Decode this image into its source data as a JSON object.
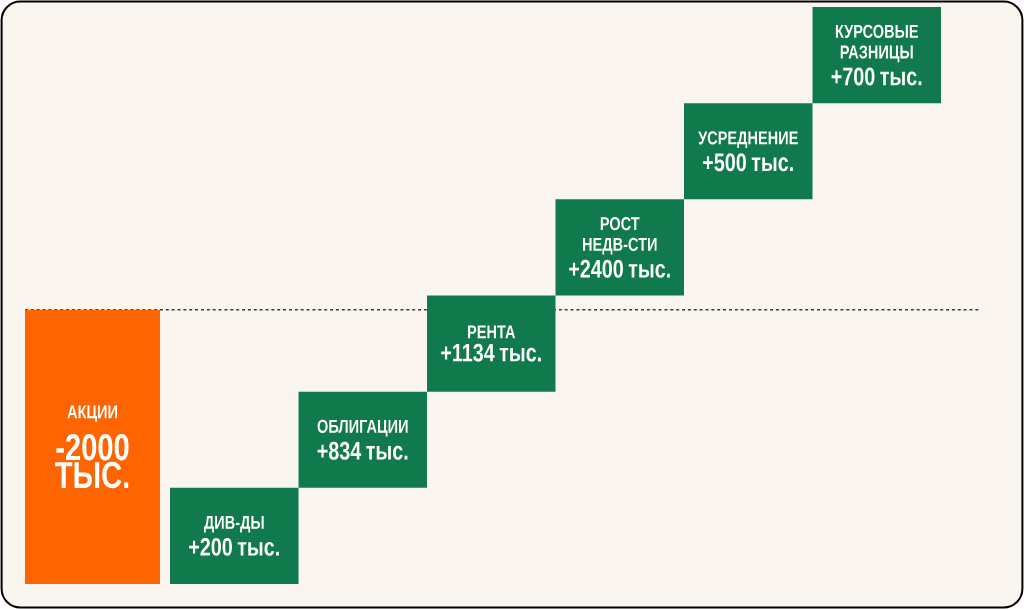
{
  "chart_data": {
    "type": "other",
    "categories": [
      "АКЦИИ",
      "ДИВ-ДЫ",
      "ОБЛИГАЦИИ",
      "РЕНТА",
      "РОСТ НЕДВ-СТИ",
      "УСРЕДНЕНИЕ",
      "КУРСОВЫЕ РАЗНИЦЫ"
    ],
    "values": [
      -2000,
      200,
      834,
      1134,
      2400,
      500,
      700
    ],
    "value_labels": [
      "-2000 ТЫС.",
      "+200 тыс.",
      "+834 тыс.",
      "+1134 тыс.",
      "+2400 тыс.",
      "+500 тыс.",
      "+700 тыс."
    ],
    "colors": [
      "#fe6500",
      "#107a4d",
      "#107a4d",
      "#107a4d",
      "#107a4d",
      "#107a4d",
      "#107a4d"
    ],
    "ref_lines": [
      {
        "axis": "y",
        "color": "#3a3a3a",
        "line_style": "dotted"
      }
    ]
  }
}
